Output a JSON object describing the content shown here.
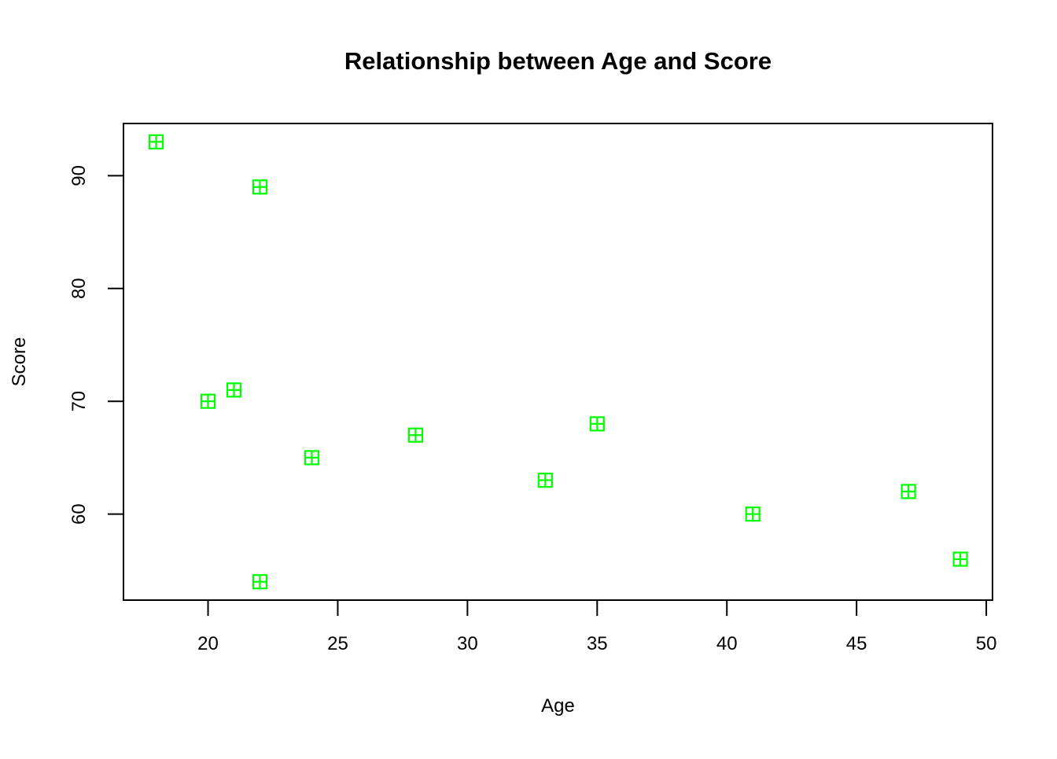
{
  "chart_data": {
    "type": "scatter",
    "title": "Relationship between Age and Score",
    "xlabel": "Age",
    "ylabel": "Score",
    "points": [
      {
        "age": 18,
        "score": 93
      },
      {
        "age": 20,
        "score": 70
      },
      {
        "age": 21,
        "score": 71
      },
      {
        "age": 22,
        "score": 89
      },
      {
        "age": 22,
        "score": 54
      },
      {
        "age": 24,
        "score": 65
      },
      {
        "age": 28,
        "score": 67
      },
      {
        "age": 33,
        "score": 63
      },
      {
        "age": 35,
        "score": 68
      },
      {
        "age": 41,
        "score": 60
      },
      {
        "age": 47,
        "score": 62
      },
      {
        "age": 49,
        "score": 56
      }
    ],
    "x_ticks": [
      20,
      25,
      30,
      35,
      40,
      45,
      50
    ],
    "y_ticks": [
      60,
      70,
      80,
      90
    ],
    "xlim": [
      16.74,
      50.24
    ],
    "ylim": [
      52.37,
      94.63
    ],
    "grid": false,
    "legend": "none",
    "marker": {
      "shape": "square-plus",
      "color": "#00FF00",
      "size": 17,
      "stroke_width": 2.2
    },
    "axis_color": "#000000",
    "text_color": "#000000",
    "background": "#FFFFFF"
  }
}
